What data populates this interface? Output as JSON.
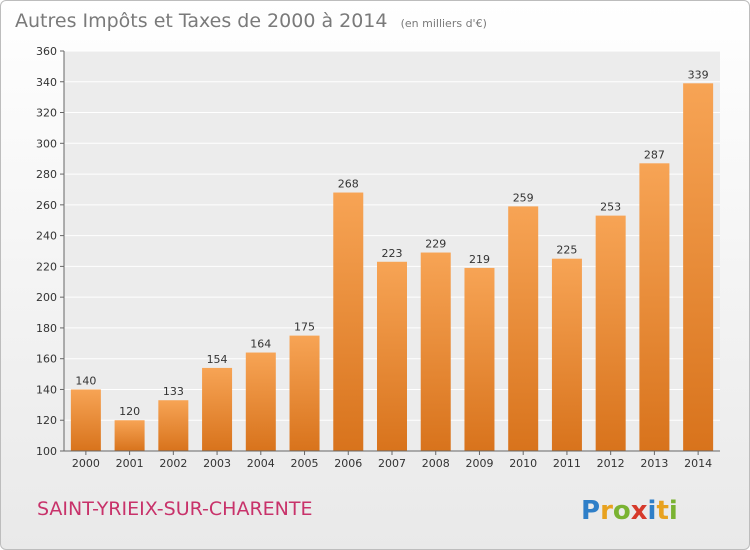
{
  "chart_data": {
    "type": "bar",
    "title": "Autres Impôts et Taxes de 2000 à 2014",
    "subtitle": "(en milliers d'€)",
    "categories": [
      "2000",
      "2001",
      "2002",
      "2003",
      "2004",
      "2005",
      "2006",
      "2007",
      "2008",
      "2009",
      "2010",
      "2011",
      "2012",
      "2013",
      "2014"
    ],
    "values": [
      140,
      120,
      133,
      154,
      164,
      175,
      268,
      223,
      229,
      219,
      259,
      225,
      253,
      287,
      339
    ],
    "ylim": [
      100,
      360
    ],
    "yticks": [
      100,
      120,
      140,
      160,
      180,
      200,
      220,
      240,
      260,
      280,
      300,
      320,
      340,
      360
    ],
    "grid": true,
    "xlabel": "",
    "ylabel": "",
    "bar_color_light": "#f7a455",
    "bar_color_dark": "#d8731c"
  },
  "footer": {
    "commune": "SAINT-YRIEIX-SUR-CHARENTE",
    "logo": {
      "letters": [
        "P",
        "r",
        "o",
        "x",
        "i",
        "t",
        "i"
      ],
      "colors": [
        "#2f7fc8",
        "#e8a21f",
        "#7ab332",
        "#d63a2b",
        "#2f7fc8",
        "#e8a21f",
        "#7ab332"
      ]
    }
  }
}
